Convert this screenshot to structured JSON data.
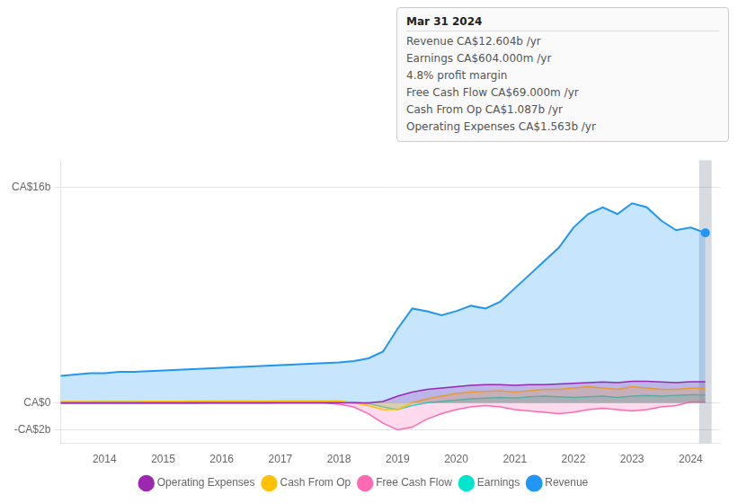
{
  "chart_data": {
    "type": "area",
    "x": [
      2013.25,
      2013.5,
      2013.75,
      2014.0,
      2014.25,
      2014.5,
      2014.75,
      2015.0,
      2015.25,
      2015.5,
      2015.75,
      2016.0,
      2016.25,
      2016.5,
      2016.75,
      2017.0,
      2017.25,
      2017.5,
      2017.75,
      2018.0,
      2018.25,
      2018.5,
      2018.75,
      2019.0,
      2019.25,
      2019.5,
      2019.75,
      2020.0,
      2020.25,
      2020.5,
      2020.75,
      2021.0,
      2021.25,
      2021.5,
      2021.75,
      2022.0,
      2022.25,
      2022.5,
      2022.75,
      2023.0,
      2023.25,
      2023.5,
      2023.75,
      2024.0,
      2024.25
    ],
    "series": [
      {
        "name": "Revenue",
        "color": "#2196f3",
        "values": [
          2.0,
          2.1,
          2.2,
          2.2,
          2.3,
          2.3,
          2.35,
          2.4,
          2.45,
          2.5,
          2.55,
          2.6,
          2.65,
          2.7,
          2.75,
          2.8,
          2.85,
          2.9,
          2.95,
          3.0,
          3.1,
          3.3,
          3.8,
          5.5,
          7.0,
          6.8,
          6.5,
          6.8,
          7.2,
          7.0,
          7.5,
          8.5,
          9.5,
          10.5,
          11.5,
          13.0,
          14.0,
          14.5,
          14.0,
          14.8,
          14.5,
          13.5,
          12.8,
          13.0,
          12.6
        ]
      },
      {
        "name": "Earnings",
        "color": "#00e5cc",
        "values": [
          0.05,
          0.06,
          0.07,
          0.08,
          0.09,
          0.08,
          0.07,
          0.06,
          0.07,
          0.08,
          0.09,
          0.1,
          0.1,
          0.1,
          0.09,
          0.1,
          0.11,
          0.1,
          0.09,
          0.1,
          0.05,
          -0.05,
          -0.3,
          -0.5,
          -0.2,
          0.0,
          0.1,
          0.2,
          0.3,
          0.35,
          0.4,
          0.35,
          0.45,
          0.5,
          0.45,
          0.4,
          0.45,
          0.5,
          0.4,
          0.5,
          0.55,
          0.5,
          0.55,
          0.6,
          0.604
        ]
      },
      {
        "name": "Free Cash Flow",
        "color": "#ff69b4",
        "values": [
          -0.05,
          -0.05,
          -0.05,
          -0.05,
          -0.04,
          -0.04,
          -0.04,
          -0.04,
          -0.04,
          -0.04,
          -0.03,
          -0.03,
          -0.03,
          -0.03,
          -0.03,
          -0.02,
          -0.02,
          -0.02,
          -0.02,
          -0.1,
          -0.3,
          -0.8,
          -1.5,
          -2.0,
          -1.8,
          -1.2,
          -0.8,
          -0.5,
          -0.3,
          -0.2,
          -0.3,
          -0.5,
          -0.6,
          -0.7,
          -0.8,
          -0.7,
          -0.5,
          -0.4,
          -0.5,
          -0.6,
          -0.5,
          -0.3,
          -0.2,
          0.069,
          0.069
        ]
      },
      {
        "name": "Cash From Op",
        "color": "#ffc107",
        "values": [
          0.1,
          0.1,
          0.1,
          0.1,
          0.1,
          0.1,
          0.12,
          0.12,
          0.12,
          0.13,
          0.13,
          0.13,
          0.14,
          0.14,
          0.14,
          0.15,
          0.15,
          0.16,
          0.16,
          0.15,
          0.0,
          -0.2,
          -0.5,
          -0.5,
          0.0,
          0.3,
          0.5,
          0.7,
          0.8,
          0.85,
          0.9,
          0.8,
          0.9,
          1.0,
          1.0,
          1.1,
          1.2,
          1.1,
          1.0,
          1.2,
          1.1,
          1.0,
          1.0,
          1.087,
          1.087
        ]
      },
      {
        "name": "Operating Expenses",
        "color": "#9c27b0",
        "values": [
          0.0,
          0.0,
          0.0,
          0.0,
          0.0,
          0.0,
          0.0,
          0.0,
          0.0,
          0.0,
          0.0,
          0.0,
          0.0,
          0.0,
          0.0,
          0.0,
          0.0,
          0.0,
          0.0,
          0.0,
          0.0,
          0.0,
          0.1,
          0.5,
          0.8,
          1.0,
          1.1,
          1.2,
          1.3,
          1.35,
          1.35,
          1.3,
          1.35,
          1.35,
          1.4,
          1.45,
          1.5,
          1.55,
          1.5,
          1.6,
          1.6,
          1.55,
          1.5,
          1.563,
          1.563
        ]
      }
    ],
    "xlim": [
      2013.25,
      2024.5
    ],
    "xticks": [
      2014,
      2015,
      2016,
      2017,
      2018,
      2019,
      2020,
      2021,
      2022,
      2023,
      2024
    ],
    "ylim": [
      -3,
      18
    ],
    "yticks": [
      {
        "value": 16,
        "label": "CA$16b"
      },
      {
        "value": 0,
        "label": "CA$0"
      },
      {
        "value": -2,
        "label": "-CA$2b"
      }
    ],
    "grid": "y",
    "legend": "bottom",
    "annotations": [
      "Mar 31 2024",
      "Revenue CA$12.604b /yr",
      "Earnings CA$604.000m /yr",
      "4.8% profit margin",
      "Free Cash Flow CA$69.000m /yr",
      "Cash From Op CA$1.087b /yr",
      "Operating Expenses CA$1.563b /yr"
    ]
  }
}
